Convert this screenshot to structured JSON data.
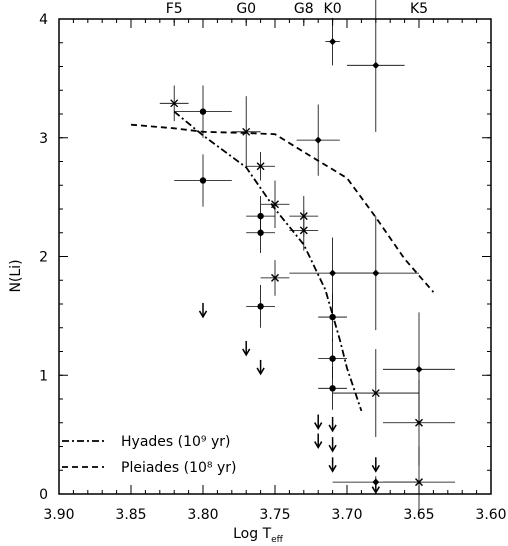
{
  "chart_data": {
    "type": "scatter",
    "xlabel": "Log T",
    "xlabel_sub": "eff",
    "ylabel": "N(Li)",
    "xlim": [
      3.9,
      3.6
    ],
    "ylim": [
      0,
      4
    ],
    "x_ticks": [
      3.9,
      3.85,
      3.8,
      3.75,
      3.7,
      3.65,
      3.6
    ],
    "x_tick_labels": [
      "3.90",
      "3.85",
      "3.80",
      "3.75",
      "3.70",
      "3.65",
      "3.60"
    ],
    "y_ticks": [
      0,
      1,
      2,
      3,
      4
    ],
    "y_tick_labels": [
      "0",
      "1",
      "2",
      "3",
      "4"
    ],
    "x_minor_step": 0.01,
    "y_minor_step": 0.2,
    "top_axis": [
      {
        "label": "F5",
        "x": 3.82
      },
      {
        "label": "G0",
        "x": 3.77
      },
      {
        "label": "G8",
        "x": 3.73
      },
      {
        "label": "K0",
        "x": 3.71
      },
      {
        "label": "K5",
        "x": 3.65
      }
    ],
    "series": [
      {
        "marker": "circle",
        "points": [
          {
            "x": 3.8,
            "y": 3.22,
            "xerr": 0.02,
            "yerr": 0.22
          },
          {
            "x": 3.8,
            "y": 2.64,
            "xerr": 0.02,
            "yerr": 0.22
          },
          {
            "x": 3.76,
            "y": 2.34,
            "xerr": 0.01,
            "yerr": 0.17
          },
          {
            "x": 3.76,
            "y": 2.2,
            "xerr": 0.01,
            "yerr": 0.17
          },
          {
            "x": 3.76,
            "y": 1.58,
            "xerr": 0.01,
            "yerr": 0.18
          },
          {
            "x": 3.71,
            "y": 1.49,
            "xerr": 0.01,
            "yerr": 0.2
          },
          {
            "x": 3.71,
            "y": 1.14,
            "xerr": 0.01,
            "yerr": 0.17
          },
          {
            "x": 3.71,
            "y": 0.89,
            "xerr": 0.01,
            "yerr": 0.18
          }
        ]
      },
      {
        "marker": "x",
        "points": [
          {
            "x": 3.82,
            "y": 3.29,
            "xerr": 0.01,
            "yerr": 0.15
          },
          {
            "x": 3.77,
            "y": 3.05,
            "xerr": 0.01,
            "yerr": 0.3
          },
          {
            "x": 3.76,
            "y": 2.76,
            "xerr": 0.01,
            "yerr": 0.12
          },
          {
            "x": 3.75,
            "y": 2.44,
            "xerr": 0.01,
            "yerr": 0.2
          },
          {
            "x": 3.73,
            "y": 2.34,
            "xerr": 0.01,
            "yerr": 0.17
          },
          {
            "x": 3.73,
            "y": 2.22,
            "xerr": 0.01,
            "yerr": 0.17
          },
          {
            "x": 3.75,
            "y": 1.82,
            "xerr": 0.01,
            "yerr": 0.15
          },
          {
            "x": 3.68,
            "y": 0.85,
            "xerr": 0.03,
            "yerr": 0.37
          },
          {
            "x": 3.65,
            "y": 0.6,
            "xerr": 0.025,
            "yerr": 0.36
          },
          {
            "x": 3.65,
            "y": 0.1,
            "xerr": 0.025,
            "yerr": 0.3
          }
        ]
      },
      {
        "marker": "diamond",
        "points": [
          {
            "x": 3.71,
            "y": 3.81,
            "xerr": 0.005,
            "yerr": 0.2
          },
          {
            "x": 3.68,
            "y": 3.61,
            "xerr": 0.02,
            "yerr": 0.56
          },
          {
            "x": 3.72,
            "y": 2.98,
            "xerr": 0.015,
            "yerr": 0.3
          },
          {
            "x": 3.71,
            "y": 1.86,
            "xerr": 0.03,
            "yerr": 0.3
          },
          {
            "x": 3.68,
            "y": 1.86,
            "xerr": 0.03,
            "yerr": 0.48
          },
          {
            "x": 3.65,
            "y": 1.05,
            "xerr": 0.025,
            "yerr": 0.48
          },
          {
            "x": 3.68,
            "y": 0.1,
            "xerr": 0.03,
            "yerr": 0.05
          }
        ]
      },
      {
        "marker": "upper-limit",
        "points": [
          {
            "x": 3.8,
            "y": 1.55
          },
          {
            "x": 3.77,
            "y": 1.23
          },
          {
            "x": 3.76,
            "y": 1.07
          },
          {
            "x": 3.72,
            "y": 0.61
          },
          {
            "x": 3.72,
            "y": 0.45
          },
          {
            "x": 3.71,
            "y": 0.59
          },
          {
            "x": 3.71,
            "y": 0.42
          },
          {
            "x": 3.71,
            "y": 0.25
          },
          {
            "x": 3.68,
            "y": 0.25
          },
          {
            "x": 3.68,
            "y": 0.07
          }
        ]
      }
    ],
    "curves": [
      {
        "name": "Hyades (10⁹ yr)",
        "style": "dashdot",
        "points": [
          [
            3.82,
            3.22
          ],
          [
            3.8,
            3.02
          ],
          [
            3.77,
            2.75
          ],
          [
            3.75,
            2.4
          ],
          [
            3.73,
            2.1
          ],
          [
            3.715,
            1.72
          ],
          [
            3.705,
            1.3
          ],
          [
            3.7,
            1.06
          ],
          [
            3.69,
            0.7
          ]
        ]
      },
      {
        "name": "Pleiades (10⁸ yr)",
        "style": "dashed",
        "points": [
          [
            3.85,
            3.11
          ],
          [
            3.82,
            3.08
          ],
          [
            3.8,
            3.05
          ],
          [
            3.77,
            3.04
          ],
          [
            3.75,
            3.03
          ],
          [
            3.73,
            2.88
          ],
          [
            3.7,
            2.66
          ],
          [
            3.68,
            2.33
          ],
          [
            3.66,
            1.98
          ],
          [
            3.64,
            1.7
          ]
        ]
      }
    ],
    "legend_position": "bottom-left"
  }
}
